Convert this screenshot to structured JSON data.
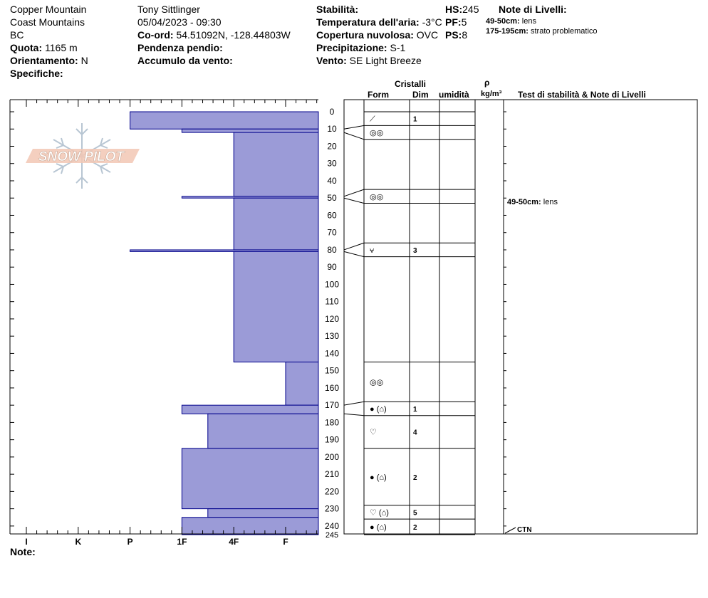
{
  "header": {
    "location": "Copper Mountain",
    "range": "Coast Mountains",
    "state": "BC",
    "elevation_label": "Quota:",
    "elevation_value": "1165 m",
    "aspect_label": "Orientamento:",
    "aspect_value": "N",
    "specifics_label": "Specifiche:",
    "observer": "Tony Sittlinger",
    "datetime": "05/04/2023 - 09:30",
    "coord_label": "Co-ord:",
    "coord_value": "54.51092N, -128.44803W",
    "slope_label": "Pendenza pendio:",
    "wind_loading_label": "Accumulo da vento:",
    "stability_label": "Stabilità:",
    "air_temp_label": "Temperatura dell'aria:",
    "air_temp_value": "-3°C",
    "sky_label": "Copertura nuvolosa:",
    "sky_value": "OVC",
    "precip_label": "Precipitazione:",
    "precip_value": "S-1",
    "wind_label": "Vento:",
    "wind_value": "SE  Light Breeze",
    "hs_label": "HS:",
    "hs_value": "245",
    "pf_label": "PF:",
    "pf_value": "5",
    "ps_label": "PS:",
    "ps_value": "8",
    "layer_notes_title": "Note di Livelli:",
    "layer_notes": [
      {
        "range": "49-50cm:",
        "text": "lens"
      },
      {
        "range": "175-195cm:",
        "text": "strato problematico"
      }
    ]
  },
  "logo_text": "SNOW PILOT",
  "notes_label": "Note:",
  "right_headers": {
    "crystals": "Cristalli",
    "form": "Form",
    "size": "Dim",
    "moisture": "umidità",
    "rho": "ρ",
    "density_unit": "kg/m³",
    "stability_notes": "Test di stabilità & Note di Livelli"
  },
  "colors": {
    "layer_fill": "#9b9bd7",
    "layer_edge": "#00008b"
  },
  "chart_data": {
    "type": "bar",
    "title": "",
    "xlabel": "",
    "ylabel": "",
    "hardness_ticks": [
      "I",
      "K",
      "P",
      "1F",
      "4F",
      "F"
    ],
    "depth_ticks": [
      0,
      10,
      20,
      30,
      40,
      50,
      60,
      70,
      80,
      90,
      100,
      110,
      120,
      130,
      140,
      150,
      160,
      170,
      180,
      190,
      200,
      210,
      220,
      230,
      240,
      245
    ],
    "ylim": [
      0,
      245
    ],
    "layers": [
      {
        "top": 0,
        "bottom": 10,
        "hardness": 3.0
      },
      {
        "top": 10,
        "bottom": 12,
        "hardness": 4.0
      },
      {
        "top": 12,
        "bottom": 49,
        "hardness": 5.0
      },
      {
        "top": 49,
        "bottom": 50,
        "hardness": 4.0
      },
      {
        "top": 50,
        "bottom": 80,
        "hardness": 5.0
      },
      {
        "top": 80,
        "bottom": 81,
        "hardness": 3.0
      },
      {
        "top": 81,
        "bottom": 145,
        "hardness": 5.0
      },
      {
        "top": 145,
        "bottom": 170,
        "hardness": 6.0
      },
      {
        "top": 170,
        "bottom": 175,
        "hardness": 4.0
      },
      {
        "top": 175,
        "bottom": 195,
        "hardness": 4.5
      },
      {
        "top": 195,
        "bottom": 230,
        "hardness": 4.0
      },
      {
        "top": 230,
        "bottom": 235,
        "hardness": 4.5
      },
      {
        "top": 235,
        "bottom": 245,
        "hardness": 4.0
      }
    ],
    "crystal_boundaries": [
      0,
      8,
      16,
      45,
      53,
      76,
      84,
      145,
      168,
      176,
      195,
      228,
      236,
      245
    ],
    "crystals": [
      {
        "top": 0,
        "bottom": 8,
        "form": "⟋",
        "size": "1"
      },
      {
        "top": 8,
        "bottom": 16,
        "form": "◎◎",
        "size": ""
      },
      {
        "top": 16,
        "bottom": 45,
        "form": "",
        "size": ""
      },
      {
        "top": 45,
        "bottom": 53,
        "form": "◎◎",
        "size": ""
      },
      {
        "top": 53,
        "bottom": 76,
        "form": "",
        "size": ""
      },
      {
        "top": 76,
        "bottom": 84,
        "form": "⩝",
        "size": "3"
      },
      {
        "top": 84,
        "bottom": 145,
        "form": "",
        "size": ""
      },
      {
        "top": 145,
        "bottom": 168,
        "form": "◎◎",
        "size": ""
      },
      {
        "top": 168,
        "bottom": 176,
        "form": "● (⌂)",
        "size": "1"
      },
      {
        "top": 176,
        "bottom": 195,
        "form": "♡",
        "size": "4"
      },
      {
        "top": 195,
        "bottom": 228,
        "form": "● (⌂)",
        "size": "2"
      },
      {
        "top": 228,
        "bottom": 236,
        "form": "♡ (⌂)",
        "size": "5"
      },
      {
        "top": 236,
        "bottom": 245,
        "form": "● (⌂)",
        "size": "2"
      }
    ],
    "annotations": [
      {
        "depth": 50,
        "range": "49-50cm:",
        "text": "lens"
      },
      {
        "depth": 245,
        "range": "",
        "text": "CTN"
      }
    ]
  }
}
